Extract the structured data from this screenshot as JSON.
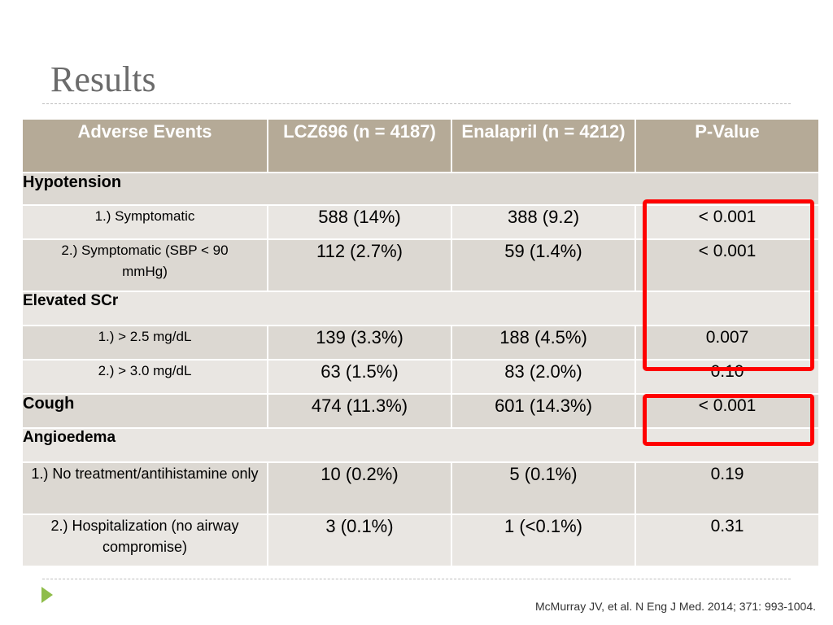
{
  "slide": {
    "title": "Results",
    "citation": "McMurray JV, et al. N Eng J Med. 2014; 371: 993-1004."
  },
  "table": {
    "headers": [
      "Adverse Events",
      "LCZ696 (n = 4187)",
      "Enalapril (n = 4212)",
      "P-Value"
    ],
    "hypotension": {
      "label": "Hypotension",
      "rows": [
        {
          "event": "1.) Symptomatic",
          "lcz": "588 (14%)",
          "enalapril": "388 (9.2)",
          "p": "< 0.001"
        },
        {
          "event": "2.) Symptomatic (SBP < 90 mmHg)",
          "lcz": "112 (2.7%)",
          "enalapril": "59 (1.4%)",
          "p": "< 0.001"
        }
      ]
    },
    "scr": {
      "label": "Elevated SCr",
      "rows": [
        {
          "event": "1.) > 2.5 mg/dL",
          "lcz": "139 (3.3%)",
          "enalapril": "188 (4.5%)",
          "p": "0.007"
        },
        {
          "event": "2.) > 3.0 mg/dL",
          "lcz": "63 (1.5%)",
          "enalapril": "83 (2.0%)",
          "p": "0.10"
        }
      ]
    },
    "cough": {
      "label": "Cough",
      "lcz": "474 (11.3%)",
      "enalapril": "601 (14.3%)",
      "p": "< 0.001"
    },
    "angioedema": {
      "label": "Angioedema",
      "rows": [
        {
          "event": "1.) No treatment/antihistamine only",
          "lcz": "10 (0.2%)",
          "enalapril": "5 (0.1%)",
          "p": "0.19"
        },
        {
          "event": "2.) Hospitalization (no airway compromise)",
          "lcz": "3 (0.1%)",
          "enalapril": "1 (<0.1%)",
          "p": "0.31"
        }
      ]
    }
  },
  "colors": {
    "header_bg": "#b5aa97",
    "row_light": "#e9e6e2",
    "row_mid": "#dcd8d2",
    "highlight": "#ff0000",
    "bullet": "#8fbd4a"
  },
  "icons": {
    "bullet": "triangle-bullet-icon"
  }
}
